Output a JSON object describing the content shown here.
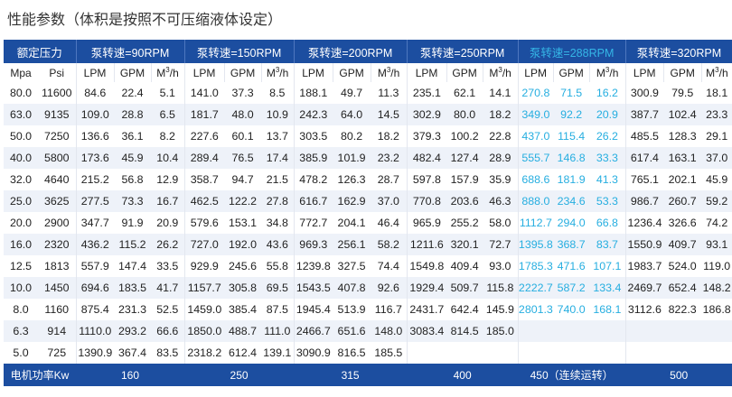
{
  "title": "性能参数（体积是按照不可压缩液体设定）",
  "header": {
    "pressure_label": "额定压力",
    "groups": [
      "泵转速=90RPM",
      "泵转速=150RPM",
      "泵转速=200RPM",
      "泵转速=250RPM",
      "泵转速=288RPM",
      "泵转速=320RPM"
    ],
    "highlight_group": 4
  },
  "units": {
    "pressure": [
      "Mpa",
      "Psi"
    ],
    "flow": [
      "LPM",
      "GPM",
      "M3/h"
    ]
  },
  "colors": {
    "header_bg": "#1c4ea0",
    "header_text": "#ffffff",
    "highlight_text": "#26aee0",
    "row_stripe": "#eef2f9"
  },
  "rows": [
    {
      "mpa": "80.0",
      "psi": "11600",
      "values": [
        [
          "84.6",
          "22.4",
          "5.1"
        ],
        [
          "141.0",
          "37.3",
          "8.5"
        ],
        [
          "188.1",
          "49.7",
          "11.3"
        ],
        [
          "235.1",
          "62.1",
          "14.1"
        ],
        [
          "270.8",
          "71.5",
          "16.2"
        ],
        [
          "300.9",
          "79.5",
          "18.1"
        ]
      ]
    },
    {
      "mpa": "63.0",
      "psi": "9135",
      "values": [
        [
          "109.0",
          "28.8",
          "6.5"
        ],
        [
          "181.7",
          "48.0",
          "10.9"
        ],
        [
          "242.3",
          "64.0",
          "14.5"
        ],
        [
          "302.9",
          "80.0",
          "18.2"
        ],
        [
          "349.0",
          "92.2",
          "20.9"
        ],
        [
          "387.7",
          "102.4",
          "23.3"
        ]
      ]
    },
    {
      "mpa": "50.0",
      "psi": "7250",
      "values": [
        [
          "136.6",
          "36.1",
          "8.2"
        ],
        [
          "227.6",
          "60.1",
          "13.7"
        ],
        [
          "303.5",
          "80.2",
          "18.2"
        ],
        [
          "379.3",
          "100.2",
          "22.8"
        ],
        [
          "437.0",
          "115.4",
          "26.2"
        ],
        [
          "485.5",
          "128.3",
          "29.1"
        ]
      ]
    },
    {
      "mpa": "40.0",
      "psi": "5800",
      "values": [
        [
          "173.6",
          "45.9",
          "10.4"
        ],
        [
          "289.4",
          "76.5",
          "17.4"
        ],
        [
          "385.9",
          "101.9",
          "23.2"
        ],
        [
          "482.4",
          "127.4",
          "28.9"
        ],
        [
          "555.7",
          "146.8",
          "33.3"
        ],
        [
          "617.4",
          "163.1",
          "37.0"
        ]
      ]
    },
    {
      "mpa": "32.0",
      "psi": "4640",
      "values": [
        [
          "215.2",
          "56.8",
          "12.9"
        ],
        [
          "358.7",
          "94.7",
          "21.5"
        ],
        [
          "478.2",
          "126.3",
          "28.7"
        ],
        [
          "597.8",
          "157.9",
          "35.9"
        ],
        [
          "688.6",
          "181.9",
          "41.3"
        ],
        [
          "765.1",
          "202.1",
          "45.9"
        ]
      ]
    },
    {
      "mpa": "25.0",
      "psi": "3625",
      "values": [
        [
          "277.5",
          "73.3",
          "16.7"
        ],
        [
          "462.5",
          "122.2",
          "27.8"
        ],
        [
          "616.7",
          "162.9",
          "37.0"
        ],
        [
          "770.8",
          "203.6",
          "46.3"
        ],
        [
          "888.0",
          "234.6",
          "53.3"
        ],
        [
          "986.7",
          "260.7",
          "59.2"
        ]
      ]
    },
    {
      "mpa": "20.0",
      "psi": "2900",
      "values": [
        [
          "347.7",
          "91.9",
          "20.9"
        ],
        [
          "579.6",
          "153.1",
          "34.8"
        ],
        [
          "772.7",
          "204.1",
          "46.4"
        ],
        [
          "965.9",
          "255.2",
          "58.0"
        ],
        [
          "1112.7",
          "294.0",
          "66.8"
        ],
        [
          "1236.4",
          "326.6",
          "74.2"
        ]
      ]
    },
    {
      "mpa": "16.0",
      "psi": "2320",
      "values": [
        [
          "436.2",
          "115.2",
          "26.2"
        ],
        [
          "727.0",
          "192.0",
          "43.6"
        ],
        [
          "969.3",
          "256.1",
          "58.2"
        ],
        [
          "1211.6",
          "320.1",
          "72.7"
        ],
        [
          "1395.8",
          "368.7",
          "83.7"
        ],
        [
          "1550.9",
          "409.7",
          "93.1"
        ]
      ]
    },
    {
      "mpa": "12.5",
      "psi": "1813",
      "values": [
        [
          "557.9",
          "147.4",
          "33.5"
        ],
        [
          "929.9",
          "245.6",
          "55.8"
        ],
        [
          "1239.8",
          "327.5",
          "74.4"
        ],
        [
          "1549.8",
          "409.4",
          "93.0"
        ],
        [
          "1785.3",
          "471.6",
          "107.1"
        ],
        [
          "1983.7",
          "524.0",
          "119.0"
        ]
      ]
    },
    {
      "mpa": "10.0",
      "psi": "1450",
      "values": [
        [
          "694.6",
          "183.5",
          "41.7"
        ],
        [
          "1157.7",
          "305.8",
          "69.5"
        ],
        [
          "1543.5",
          "407.8",
          "92.6"
        ],
        [
          "1929.4",
          "509.7",
          "115.8"
        ],
        [
          "2222.7",
          "587.2",
          "133.4"
        ],
        [
          "2469.7",
          "652.4",
          "148.2"
        ]
      ]
    },
    {
      "mpa": "8.0",
      "psi": "1160",
      "values": [
        [
          "875.4",
          "231.3",
          "52.5"
        ],
        [
          "1459.0",
          "385.4",
          "87.5"
        ],
        [
          "1945.4",
          "513.9",
          "116.7"
        ],
        [
          "2431.7",
          "642.4",
          "145.9"
        ],
        [
          "2801.3",
          "740.0",
          "168.1"
        ],
        [
          "3112.6",
          "822.3",
          "186.8"
        ]
      ]
    },
    {
      "mpa": "6.3",
      "psi": "914",
      "values": [
        [
          "1110.0",
          "293.2",
          "66.6"
        ],
        [
          "1850.0",
          "488.7",
          "111.0"
        ],
        [
          "2466.7",
          "651.6",
          "148.0"
        ],
        [
          "3083.4",
          "814.5",
          "185.0"
        ],
        [
          "",
          "",
          ""
        ],
        [
          "",
          "",
          ""
        ]
      ]
    },
    {
      "mpa": "5.0",
      "psi": "725",
      "values": [
        [
          "1390.9",
          "367.4",
          "83.5"
        ],
        [
          "2318.2",
          "612.4",
          "139.1"
        ],
        [
          "3090.9",
          "816.5",
          "185.5"
        ],
        [
          "",
          "",
          ""
        ],
        [
          "",
          "",
          ""
        ],
        [
          "",
          "",
          ""
        ]
      ]
    }
  ],
  "footer": {
    "label": "电机功率Kw",
    "values": [
      "160",
      "250",
      "315",
      "400",
      "450（连续运转）",
      "500"
    ]
  }
}
